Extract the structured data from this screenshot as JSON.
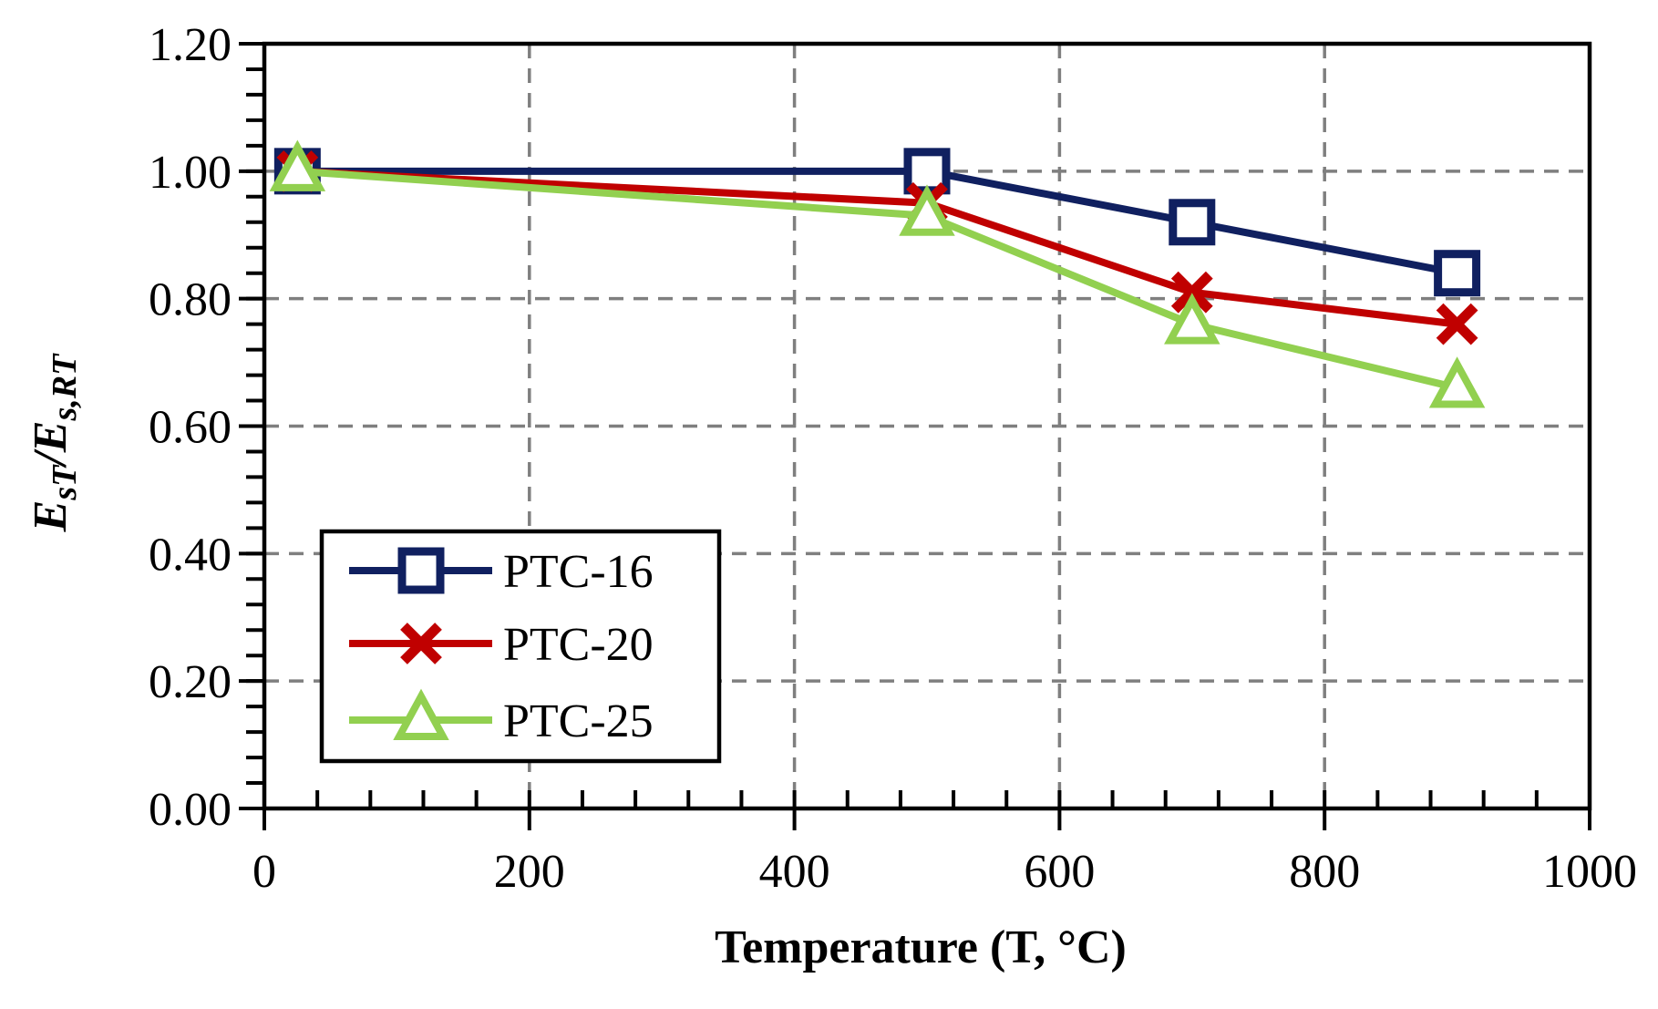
{
  "chart_data": {
    "type": "line",
    "xlabel": "Temperature (T, °C)",
    "ylabel_main": "E",
    "ylabel_sub1": "sT",
    "ylabel_slash": "/E",
    "ylabel_sub2": "s,RT",
    "xlim": [
      0,
      1000
    ],
    "ylim": [
      0.0,
      1.2
    ],
    "x_ticks": [
      0,
      200,
      400,
      600,
      800,
      1000
    ],
    "x_tick_labels": [
      "0",
      "200",
      "400",
      "600",
      "800",
      "1000"
    ],
    "y_ticks": [
      0.0,
      0.2,
      0.4,
      0.6,
      0.8,
      1.0,
      1.2
    ],
    "y_tick_labels": [
      "0.00",
      "0.20",
      "0.40",
      "0.60",
      "0.80",
      "1.00",
      "1.20"
    ],
    "grid": true,
    "legend_position": "bottom-left",
    "x": [
      25,
      500,
      700,
      900
    ],
    "series": [
      {
        "name": "PTC-16",
        "marker": "square",
        "color": "#102060",
        "values": [
          1.0,
          1.0,
          0.92,
          0.84
        ]
      },
      {
        "name": "PTC-20",
        "marker": "x",
        "color": "#C00000",
        "values": [
          1.0,
          0.95,
          0.81,
          0.76
        ]
      },
      {
        "name": "PTC-25",
        "marker": "triangle",
        "color": "#92D050",
        "values": [
          1.0,
          0.93,
          0.76,
          0.66
        ]
      }
    ]
  }
}
